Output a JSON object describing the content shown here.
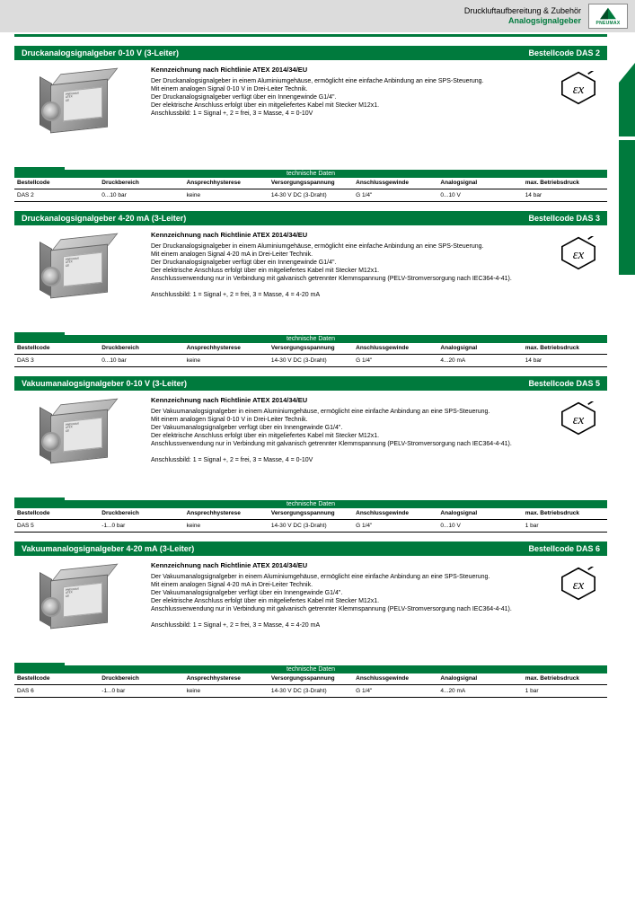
{
  "header": {
    "line1": "Druckluftaufbereitung & Zubehör",
    "line2": "Analogsignalgeber",
    "logo_text": "PNEUMAX"
  },
  "side_label": "Druckluftaufbereitung & Zubehör",
  "tech_title": "technische Daten",
  "tech_columns": [
    "Bestellcode",
    "Druckbereich",
    "Ansprechhysterese",
    "Versorgungsspannung",
    "Anschlussgewinde",
    "Analogsignal",
    "max. Betriebsdruck"
  ],
  "products": [
    {
      "title_left": "Druckanalogsignalgeber 0-10 V (3-Leiter)",
      "title_right": "Bestellcode DAS 2",
      "desc_title": "Kennzeichnung nach Richtlinie ATEX 2014/34/EU",
      "desc_body": "Der Druckanalogsignalgeber in einem Aluminiumgehäuse, ermöglicht eine einfache Anbindung an eine SPS-Steuerung.\nMit einem analogen Signal 0-10 V in Drei-Leiter Technik.\nDer Druckanalogsignalgeber verfügt über ein Innengewinde G1/4\".\nDer elektrische Anschluss erfolgt über ein mitgeliefertes Kabel mit Stecker M12x1.\nAnschlussbild: 1 = Signal +, 2 = frei, 3 = Masse, 4 = 0-10V",
      "tech_values": [
        "DAS 2",
        "0...10 bar",
        "keine",
        "14-30 V DC (3-Draht)",
        "G 1/4\"",
        "0...10 V",
        "14 bar"
      ]
    },
    {
      "title_left": "Druckanalogsignalgeber 4-20 mA (3-Leiter)",
      "title_right": "Bestellcode DAS 3",
      "desc_title": "Kennzeichnung nach Richtlinie ATEX 2014/34/EU",
      "desc_body": "Der Druckanalogsignalgeber in einem Aluminiumgehäuse, ermöglicht eine einfache Anbindung an eine SPS-Steuerung.\nMit einem analogen Signal 4-20 mA in Drei-Leiter Technik.\nDer Druckanalogsignalgeber verfügt über ein Innengewinde G1/4\".\nDer elektrische Anschluss erfolgt über ein mitgeliefertes Kabel mit Stecker M12x1.\nAnschlussverwendung nur in Verbindung mit galvanisch getrennter Klemmspannung (PELV-Stromversorgung nach IEC364-4-41).\n\nAnschlussbild: 1 = Signal +, 2 = frei, 3 = Masse, 4 = 4-20 mA",
      "tech_values": [
        "DAS 3",
        "0...10 bar",
        "keine",
        "14-30 V DC (3-Draht)",
        "G 1/4\"",
        "4...20 mA",
        "14 bar"
      ]
    },
    {
      "title_left": "Vakuumanalogsignalgeber 0-10 V (3-Leiter)",
      "title_right": "Bestellcode DAS 5",
      "desc_title": "Kennzeichnung nach Richtlinie ATEX 2014/34/EU",
      "desc_body": "Der Vakuumanalogsignalgeber in einem Aluminiumgehäuse, ermöglicht eine einfache Anbindung an eine SPS-Steuerung.\nMit einem analogen Signal 0-10 V in Drei-Leiter Technik.\nDer Vakuumanalogsignalgeber verfügt über ein Innengewinde G1/4\".\nDer elektrische Anschluss erfolgt über ein mitgeliefertes Kabel mit Stecker M12x1.\nAnschlussverwendung nur in Verbindung mit galvanisch getrennter Klemmspannung (PELV-Stromversorgung nach IEC364-4-41).\n\nAnschlussbild: 1 = Signal +, 2 = frei, 3 = Masse, 4 = 0-10V",
      "tech_values": [
        "DAS 5",
        "-1...0 bar",
        "keine",
        "14-30 V DC (3-Draht)",
        "G 1/4\"",
        "0...10 V",
        "1 bar"
      ]
    },
    {
      "title_left": "Vakuumanalogsignalgeber 4-20 mA (3-Leiter)",
      "title_right": "Bestellcode DAS 6",
      "desc_title": "Kennzeichnung nach Richtlinie ATEX 2014/34/EU",
      "desc_body": "Der Vakuumanalogsignalgeber in einem Aluminiumgehäuse, ermöglicht eine einfache Anbindung an eine SPS-Steuerung.\nMit einem analogen Signal 4-20 mA in Drei-Leiter Technik.\nDer Vakuumanalogsignalgeber verfügt über ein Innengewinde G1/4\".\nDer elektrische Anschluss erfolgt über ein mitgeliefertes Kabel mit Stecker M12x1.\nAnschlussverwendung nur in Verbindung mit galvanisch getrennter Klemmspannung (PELV-Stromversorgung nach IEC364-4-41).\n\nAnschlussbild: 1 = Signal +, 2 = frei, 3 = Masse, 4 = 4-20 mA",
      "tech_values": [
        "DAS 6",
        "-1...0 bar",
        "keine",
        "14-30 V DC (3-Draht)",
        "G 1/4\"",
        "4...20 mA",
        "1 bar"
      ]
    }
  ]
}
